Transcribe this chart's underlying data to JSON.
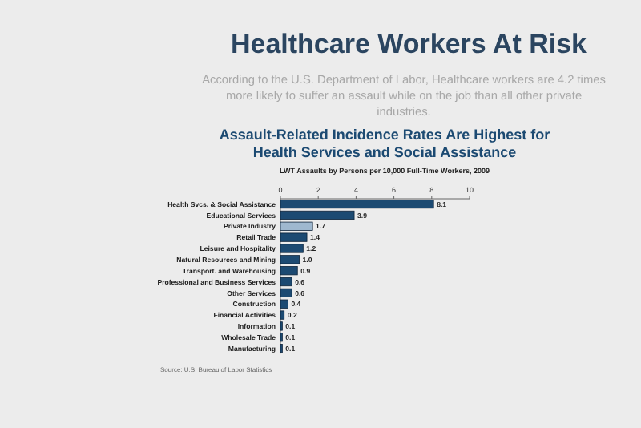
{
  "chart_data": {
    "type": "bar",
    "orientation": "horizontal",
    "title": "Healthcare Workers At Risk",
    "subtitle": "According to the U.S. Department of Labor, Healthcare workers are 4.2 times more likely to suffer an assault while on the job than all other private industries.",
    "annotations": [
      "Assault-Related Incidence Rates Are Highest for Health Services and Social Assistance",
      "Source: U.S. Bureau of Labor Statistics"
    ],
    "xlabel": "LWT Assaults by Persons per 10,000 Full-Time Workers, 2009",
    "categories": [
      "Health Svcs. & Social Assistance",
      "Educational Services",
      "Private Industry",
      "Retail Trade",
      "Leisure and Hospitality",
      "Natural Resources and Mining",
      "Transport. and Warehousing",
      "Professional and Business Services",
      "Other Services",
      "Construction",
      "Financial Activities",
      "Information",
      "Wholesale Trade",
      "Manufacturing"
    ],
    "values": [
      8.1,
      3.9,
      1.7,
      1.4,
      1.2,
      1.0,
      0.9,
      0.6,
      0.6,
      0.4,
      0.2,
      0.1,
      0.1,
      0.1
    ],
    "value_labels": [
      "8.1",
      "3.9",
      "1.7",
      "1.4",
      "1.2",
      "1.0",
      "0.9",
      "0.6",
      "0.6",
      "0.4",
      "0.2",
      "0.1",
      "0.1",
      "0.1"
    ],
    "colors": [
      "#1c4a72",
      "#1c4a72",
      "#9fb8cf",
      "#1c4a72",
      "#1c4a72",
      "#1c4a72",
      "#1c4a72",
      "#1c4a72",
      "#1c4a72",
      "#1c4a72",
      "#1c4a72",
      "#1c4a72",
      "#1c4a72",
      "#1c4a72"
    ],
    "xlim": [
      0,
      10
    ],
    "xticks": [
      0,
      2,
      4,
      6,
      8,
      10
    ],
    "grid": false
  }
}
